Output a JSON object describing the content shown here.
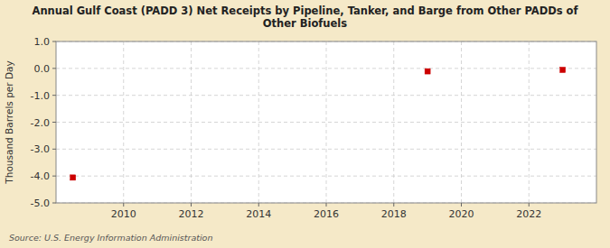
{
  "chart_data": {
    "type": "scatter",
    "title": "Annual Gulf Coast (PADD 3) Net Receipts by Pipeline, Tanker, and Barge from Other PADDs of\nOther Biofuels",
    "ylabel": "Thousand Barrels per Day",
    "source": "Source: U.S. Energy Information Administration",
    "x": [
      2008.5,
      2019.0,
      2023.0
    ],
    "values": [
      -4.057,
      -0.109,
      -0.055
    ],
    "color": "#cc0000",
    "marker": "square",
    "xlim": [
      2008.0,
      2024.0
    ],
    "ylim": [
      -5.0,
      1.0
    ],
    "xticks": [
      2010,
      2012,
      2014,
      2016,
      2018,
      2020,
      2022
    ],
    "yticks": [
      {
        "value": 1.0,
        "label": "1.0"
      },
      {
        "value": 0.0,
        "label": "0.0"
      },
      {
        "value": -1.0,
        "label": "-1.0"
      },
      {
        "value": -2.0,
        "label": "-2.0"
      },
      {
        "value": -3.0,
        "label": "-3.0"
      },
      {
        "value": -4.0,
        "label": "-4.0"
      },
      {
        "value": -5.0,
        "label": "-5.0"
      }
    ],
    "grid": true
  }
}
